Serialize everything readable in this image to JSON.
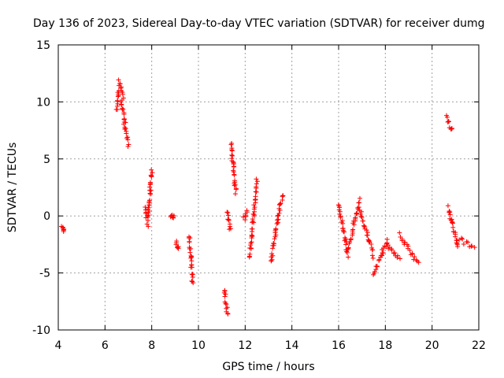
{
  "chart_data": {
    "type": "scatter",
    "title": "Day 136 of 2023, Sidereal Day-to-day VTEC variation (SDTVAR) for receiver dumg",
    "xlabel": "GPS time / hours",
    "ylabel": "SDTVAR / TECUs",
    "xlim": [
      4,
      22
    ],
    "ylim": [
      -10,
      15
    ],
    "xticks": [
      "4",
      "6",
      "8",
      "10",
      "12",
      "14",
      "16",
      "18",
      "20",
      "22"
    ],
    "yticks": [
      "-10",
      "-5",
      "0",
      "5",
      "10",
      "15"
    ],
    "grid": true,
    "marker": "+",
    "color": "#ff0000",
    "segments": [
      {
        "x0": 4.15,
        "x1": 4.25,
        "y0": -1.0,
        "y1": -1.4
      },
      {
        "x0": 6.5,
        "x1": 6.6,
        "y0": 9.3,
        "y1": 11.2
      },
      {
        "x0": 6.6,
        "x1": 6.8,
        "y0": 11.8,
        "y1": 10.4
      },
      {
        "x0": 6.7,
        "x1": 6.85,
        "y0": 10.2,
        "y1": 8.2
      },
      {
        "x0": 6.8,
        "x1": 7.0,
        "y0": 8.2,
        "y1": 6.3
      },
      {
        "x0": 7.7,
        "x1": 7.85,
        "y0": 0.8,
        "y1": -0.8
      },
      {
        "x0": 7.85,
        "x1": 8.0,
        "y0": 0.0,
        "y1": 4.0
      },
      {
        "x0": 8.8,
        "x1": 8.95,
        "y0": 0.1,
        "y1": -0.1
      },
      {
        "x0": 9.05,
        "x1": 9.15,
        "y0": -2.3,
        "y1": -2.9
      },
      {
        "x0": 9.6,
        "x1": 9.75,
        "y0": -1.8,
        "y1": -5.9
      },
      {
        "x0": 11.1,
        "x1": 11.25,
        "y0": -6.5,
        "y1": -8.6
      },
      {
        "x0": 11.25,
        "x1": 11.35,
        "y0": 0.3,
        "y1": -1.2
      },
      {
        "x0": 11.4,
        "x1": 11.6,
        "y0": 6.3,
        "y1": 2.0
      },
      {
        "x0": 11.95,
        "x1": 12.1,
        "y0": -0.2,
        "y1": 0.4
      },
      {
        "x0": 12.2,
        "x1": 12.5,
        "y0": -3.5,
        "y1": 3.0
      },
      {
        "x0": 13.1,
        "x1": 13.6,
        "y0": -4.0,
        "y1": 2.0
      },
      {
        "x0": 16.0,
        "x1": 16.4,
        "y0": 1.0,
        "y1": -3.5
      },
      {
        "x0": 16.4,
        "x1": 16.9,
        "y0": -3.0,
        "y1": 1.3
      },
      {
        "x0": 16.9,
        "x1": 17.5,
        "y0": 0.5,
        "y1": -3.5
      },
      {
        "x0": 17.5,
        "x1": 18.1,
        "y0": -5.3,
        "y1": -2.0
      },
      {
        "x0": 18.1,
        "x1": 18.6,
        "y0": -2.5,
        "y1": -3.8
      },
      {
        "x0": 18.6,
        "x1": 19.4,
        "y0": -1.5,
        "y1": -4.2
      },
      {
        "x0": 20.65,
        "x1": 20.85,
        "y0": 8.8,
        "y1": 7.5
      },
      {
        "x0": 20.7,
        "x1": 21.1,
        "y0": 0.8,
        "y1": -2.7
      },
      {
        "x0": 21.1,
        "x1": 21.8,
        "y0": -2.0,
        "y1": -2.8
      }
    ]
  }
}
